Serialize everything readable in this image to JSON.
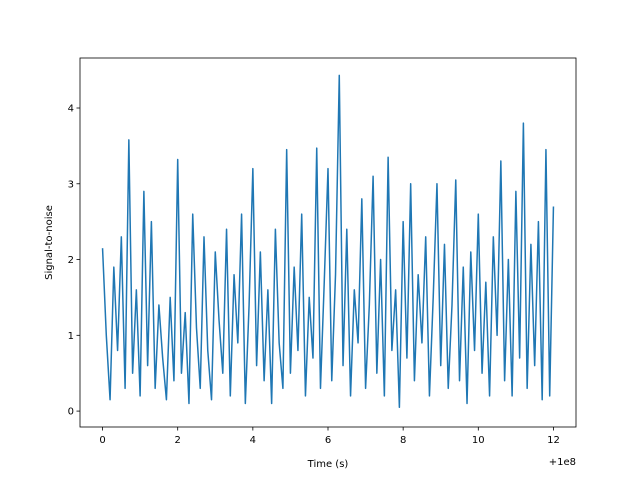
{
  "chart_data": {
    "type": "line",
    "xlabel": "Time (s)",
    "ylabel": "Signal-to-noise",
    "x_offset_label": "+1e8",
    "color": "#1f77b4",
    "x": [
      0.0,
      0.1,
      0.2,
      0.3,
      0.4,
      0.5,
      0.6,
      0.7,
      0.8,
      0.9,
      1.0,
      1.1,
      1.2,
      1.3,
      1.4,
      1.5,
      1.6,
      1.7,
      1.8,
      1.9,
      2.0,
      2.1,
      2.2,
      2.3,
      2.4,
      2.5,
      2.6,
      2.7,
      2.8,
      2.9,
      3.0,
      3.1,
      3.2,
      3.3,
      3.4,
      3.5,
      3.6,
      3.7,
      3.8,
      3.9,
      4.0,
      4.1,
      4.2,
      4.3,
      4.4,
      4.5,
      4.6,
      4.7,
      4.8,
      4.9,
      5.0,
      5.1,
      5.2,
      5.3,
      5.4,
      5.5,
      5.6,
      5.7,
      5.8,
      5.9,
      6.0,
      6.1,
      6.2,
      6.3,
      6.4,
      6.5,
      6.6,
      6.7,
      6.8,
      6.9,
      7.0,
      7.1,
      7.2,
      7.3,
      7.4,
      7.5,
      7.6,
      7.7,
      7.8,
      7.9,
      8.0,
      8.1,
      8.2,
      8.3,
      8.4,
      8.5,
      8.6,
      8.7,
      8.8,
      8.9,
      9.0,
      9.1,
      9.2,
      9.3,
      9.4,
      9.5,
      9.6,
      9.7,
      9.8,
      9.9,
      10.0,
      10.1,
      10.2,
      10.3,
      10.4,
      10.5,
      10.6,
      10.7,
      10.8,
      10.9,
      11.0,
      11.1,
      11.2,
      11.3,
      11.4,
      11.5,
      11.6,
      11.7,
      11.8,
      11.9,
      12.0
    ],
    "values": [
      2.15,
      1.0,
      0.15,
      1.9,
      0.8,
      2.3,
      0.3,
      3.58,
      0.5,
      1.6,
      0.2,
      2.9,
      0.6,
      2.5,
      0.3,
      1.4,
      0.7,
      0.15,
      1.5,
      0.4,
      3.32,
      0.5,
      1.3,
      0.1,
      2.6,
      1.1,
      0.3,
      2.3,
      0.8,
      0.15,
      2.1,
      1.2,
      0.5,
      2.4,
      0.2,
      1.8,
      0.9,
      2.6,
      0.1,
      1.4,
      3.2,
      0.6,
      2.1,
      0.4,
      1.6,
      0.1,
      2.4,
      0.9,
      0.3,
      3.45,
      0.5,
      1.9,
      0.8,
      2.6,
      0.2,
      1.5,
      0.7,
      3.47,
      0.3,
      1.7,
      3.2,
      0.4,
      1.8,
      4.43,
      0.6,
      2.4,
      0.2,
      1.6,
      0.9,
      2.8,
      0.3,
      1.4,
      3.1,
      0.5,
      2.0,
      0.2,
      3.35,
      0.8,
      1.6,
      0.05,
      2.5,
      0.7,
      3.0,
      0.4,
      1.8,
      0.9,
      2.3,
      0.2,
      1.5,
      3.0,
      0.6,
      2.2,
      0.3,
      1.4,
      3.05,
      0.4,
      1.9,
      0.1,
      2.1,
      0.8,
      2.6,
      0.5,
      1.7,
      0.2,
      2.3,
      1.0,
      3.3,
      0.4,
      2.0,
      0.2,
      2.9,
      0.7,
      3.8,
      0.3,
      2.2,
      0.6,
      2.5,
      0.15,
      3.45,
      0.2,
      2.7
    ],
    "xlim": [
      -0.6,
      12.6
    ],
    "ylim": [
      -0.21,
      4.66
    ],
    "xticks": [
      0,
      2,
      4,
      6,
      8,
      10,
      12
    ],
    "yticks": [
      0,
      1,
      2,
      3,
      4
    ]
  }
}
